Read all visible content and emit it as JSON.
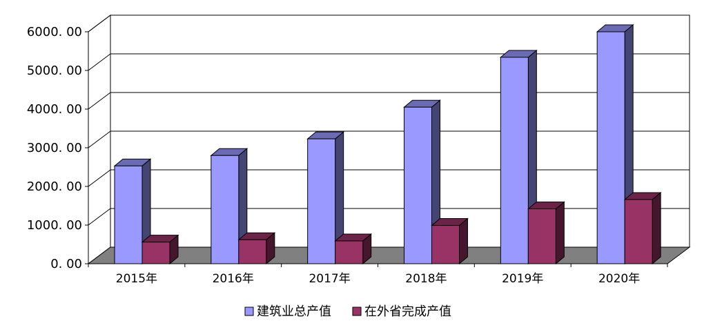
{
  "chart_data": {
    "type": "bar",
    "title": "",
    "xlabel": "",
    "ylabel": "",
    "categories": [
      "2015年",
      "2016年",
      "2017年",
      "2018年",
      "2019年",
      "2020年"
    ],
    "series": [
      {
        "name": "建筑业总产值",
        "values": [
          2530,
          2800,
          3230,
          4050,
          5340,
          6000
        ],
        "color": "#9999FF"
      },
      {
        "name": "在外省完成产值",
        "values": [
          560,
          620,
          590,
          990,
          1420,
          1660
        ],
        "color": "#993366"
      }
    ],
    "ylim": [
      0,
      6000
    ],
    "yticks": [
      "0. 00",
      "1000. 00",
      "2000. 00",
      "3000. 00",
      "4000. 00",
      "5000. 00",
      "6000. 00"
    ],
    "grid": true,
    "legend_position": "bottom",
    "floor_color": "#808080"
  }
}
